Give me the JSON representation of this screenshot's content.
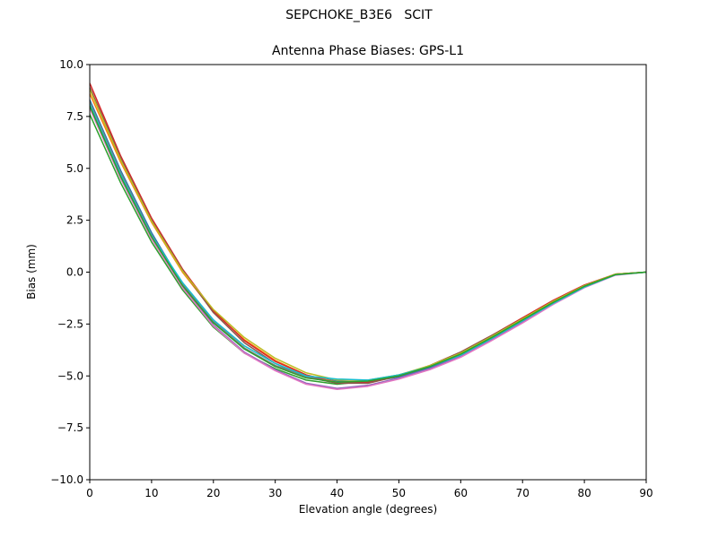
{
  "chart_data": {
    "type": "line",
    "suptitle": "SEPCHOKE_B3E6   SCIT",
    "title": "Antenna Phase Biases: GPS-L1",
    "xlabel": "Elevation angle (degrees)",
    "ylabel": "Bias (mm)",
    "xlim": [
      0,
      90
    ],
    "ylim": [
      -10,
      10
    ],
    "xticks": [
      0,
      10,
      20,
      30,
      40,
      50,
      60,
      70,
      80,
      90
    ],
    "yticks": [
      -10.0,
      -7.5,
      -5.0,
      -2.5,
      0.0,
      2.5,
      5.0,
      7.5,
      10.0
    ],
    "xtick_labels": [
      "0",
      "10",
      "20",
      "30",
      "40",
      "50",
      "60",
      "70",
      "80",
      "90"
    ],
    "ytick_labels": [
      "−10.0",
      "−7.5",
      "−5.0",
      "−2.5",
      "0.0",
      "2.5",
      "5.0",
      "7.5",
      "10.0"
    ],
    "grid": false,
    "legend": "none",
    "x": [
      0,
      5,
      10,
      15,
      20,
      25,
      30,
      35,
      40,
      45,
      50,
      55,
      60,
      65,
      70,
      75,
      80,
      85,
      90
    ],
    "series": [
      {
        "color": "#1f77b4",
        "values": [
          8.3,
          4.9,
          1.9,
          -0.6,
          -2.4,
          -3.7,
          -4.5,
          -5.0,
          -5.25,
          -5.3,
          -5.05,
          -4.6,
          -4.0,
          -3.2,
          -2.35,
          -1.5,
          -0.7,
          -0.12,
          0.0
        ]
      },
      {
        "color": "#ff7f0e",
        "values": [
          8.6,
          5.3,
          2.4,
          0.0,
          -1.9,
          -3.25,
          -4.25,
          -4.95,
          -5.3,
          -5.35,
          -5.0,
          -4.55,
          -3.9,
          -3.1,
          -2.25,
          -1.4,
          -0.65,
          -0.1,
          0.0
        ]
      },
      {
        "color": "#2ca02c",
        "values": [
          7.6,
          4.3,
          1.45,
          -0.85,
          -2.65,
          -3.9,
          -4.65,
          -5.2,
          -5.4,
          -5.25,
          -4.95,
          -4.55,
          -3.95,
          -3.2,
          -2.35,
          -1.5,
          -0.72,
          -0.12,
          0.0
        ]
      },
      {
        "color": "#d62728",
        "values": [
          9.1,
          5.6,
          2.6,
          0.15,
          -1.85,
          -3.3,
          -4.3,
          -4.95,
          -5.35,
          -5.3,
          -5.0,
          -4.5,
          -3.85,
          -3.05,
          -2.2,
          -1.35,
          -0.62,
          -0.1,
          0.0
        ]
      },
      {
        "color": "#9467bd",
        "values": [
          8.0,
          4.6,
          1.65,
          -0.7,
          -2.55,
          -3.85,
          -4.7,
          -5.35,
          -5.6,
          -5.45,
          -5.1,
          -4.65,
          -4.05,
          -3.25,
          -2.4,
          -1.5,
          -0.7,
          -0.12,
          0.0
        ]
      },
      {
        "color": "#8c564b",
        "values": [
          8.9,
          5.5,
          2.5,
          0.1,
          -1.95,
          -3.4,
          -4.4,
          -5.05,
          -5.35,
          -5.35,
          -5.0,
          -4.5,
          -3.85,
          -3.05,
          -2.25,
          -1.4,
          -0.65,
          -0.1,
          0.0
        ]
      },
      {
        "color": "#e377c2",
        "values": [
          7.9,
          4.5,
          1.6,
          -0.75,
          -2.6,
          -3.9,
          -4.75,
          -5.4,
          -5.65,
          -5.5,
          -5.15,
          -4.7,
          -4.1,
          -3.3,
          -2.45,
          -1.55,
          -0.75,
          -0.15,
          0.0
        ]
      },
      {
        "color": "#7f7f7f",
        "values": [
          8.2,
          4.8,
          1.8,
          -0.55,
          -2.35,
          -3.65,
          -4.5,
          -5.05,
          -5.3,
          -5.25,
          -5.0,
          -4.55,
          -3.95,
          -3.15,
          -2.3,
          -1.45,
          -0.68,
          -0.12,
          0.0
        ]
      },
      {
        "color": "#bcbd22",
        "values": [
          8.8,
          5.4,
          2.45,
          0.05,
          -1.8,
          -3.15,
          -4.15,
          -4.85,
          -5.2,
          -5.2,
          -4.95,
          -4.5,
          -3.9,
          -3.1,
          -2.25,
          -1.4,
          -0.65,
          -0.1,
          0.0
        ]
      },
      {
        "color": "#17becf",
        "values": [
          8.1,
          4.7,
          1.75,
          -0.5,
          -2.3,
          -3.55,
          -4.4,
          -5.0,
          -5.15,
          -5.2,
          -4.95,
          -4.55,
          -4.0,
          -3.2,
          -2.35,
          -1.5,
          -0.72,
          -0.13,
          0.0
        ]
      },
      {
        "color": "#2ca02c",
        "values": [
          8.0,
          4.6,
          1.7,
          -0.65,
          -2.45,
          -3.7,
          -4.55,
          -5.1,
          -5.3,
          -5.25,
          -5.0,
          -4.55,
          -3.95,
          -3.15,
          -2.3,
          -1.45,
          -0.68,
          -0.12,
          0.0
        ]
      }
    ]
  }
}
